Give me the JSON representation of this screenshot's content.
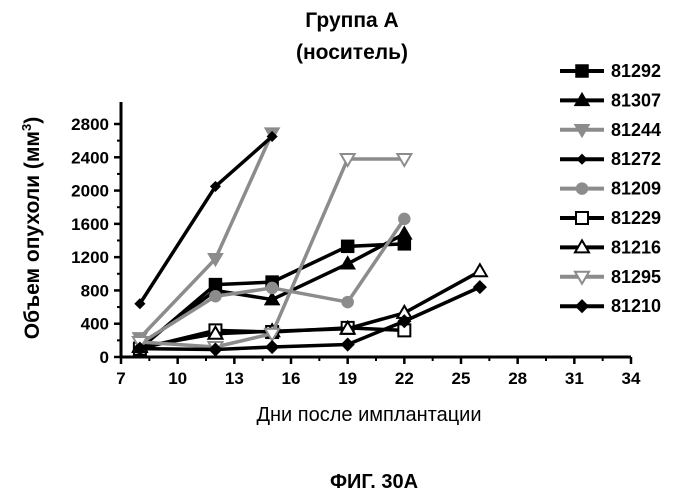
{
  "chart_data": {
    "type": "line",
    "title_line1": "Группа A",
    "title_line2": "(носитель)",
    "xlabel": "Дни после имплантации",
    "ylabel": "Объем опухоли (мм",
    "ylabel_sup": "3",
    "ylabel_close": ")",
    "xlim": [
      7,
      34
    ],
    "ylim": [
      0,
      2800
    ],
    "xticks": [
      7,
      10,
      13,
      16,
      19,
      22,
      25,
      28,
      31,
      34
    ],
    "yticks": [
      0,
      400,
      800,
      1200,
      1600,
      2000,
      2400,
      2800
    ],
    "legend_position": "right",
    "grid": false,
    "series": [
      {
        "name": "81292",
        "marker": "square-filled",
        "color": "#000000",
        "x": [
          8,
          12,
          15,
          19,
          22
        ],
        "y": [
          100,
          870,
          900,
          1330,
          1360
        ]
      },
      {
        "name": "81307",
        "marker": "triangle-up-filled",
        "color": "#000000",
        "x": [
          8,
          12,
          15,
          19,
          22
        ],
        "y": [
          130,
          800,
          690,
          1120,
          1480
        ]
      },
      {
        "name": "81244",
        "marker": "triangle-down-filled",
        "color": "#8c8c8c",
        "x": [
          8,
          12,
          15
        ],
        "y": [
          230,
          1180,
          2690
        ]
      },
      {
        "name": "81272",
        "marker": "diamond-small-filled",
        "color": "#000000",
        "x": [
          8,
          12,
          15
        ],
        "y": [
          640,
          2050,
          2650
        ]
      },
      {
        "name": "81209",
        "marker": "circle-filled",
        "color": "#8c8c8c",
        "x": [
          8,
          12,
          15,
          19,
          22
        ],
        "y": [
          160,
          730,
          830,
          660,
          1660
        ]
      },
      {
        "name": "81229",
        "marker": "square-open",
        "color": "#000000",
        "x": [
          8,
          12,
          15,
          19,
          22
        ],
        "y": [
          100,
          320,
          300,
          350,
          320
        ]
      },
      {
        "name": "81216",
        "marker": "triangle-up-open",
        "color": "#000000",
        "x": [
          8,
          12,
          15,
          19,
          22,
          26
        ],
        "y": [
          120,
          280,
          310,
          340,
          530,
          1030
        ]
      },
      {
        "name": "81295",
        "marker": "triangle-down-open",
        "color": "#8c8c8c",
        "x": [
          8,
          12,
          15,
          19,
          22
        ],
        "y": [
          180,
          120,
          280,
          2380,
          2380
        ]
      },
      {
        "name": "81210",
        "marker": "diamond-filled",
        "color": "#000000",
        "x": [
          8,
          12,
          15,
          19,
          22,
          26
        ],
        "y": [
          100,
          90,
          120,
          150,
          430,
          840
        ]
      }
    ]
  },
  "figure_caption": "ФИГ. 30A"
}
